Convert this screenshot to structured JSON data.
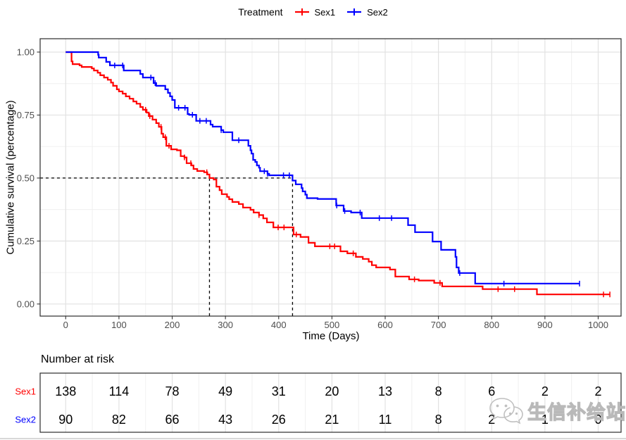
{
  "legend": {
    "title": "Treatment",
    "items": [
      {
        "label": "Sex1",
        "color": "#FF0000"
      },
      {
        "label": "Sex2",
        "color": "#0000FF"
      }
    ]
  },
  "chart_data": {
    "type": "line",
    "variant": "kaplan-meier-step-curve",
    "title": "",
    "xlabel": "Time (Days)",
    "ylabel": "Cumulative survival (percentage)",
    "x_ticks": [
      0,
      100,
      200,
      300,
      400,
      500,
      600,
      700,
      800,
      900,
      1000
    ],
    "y_ticks": [
      0,
      0.25,
      0.5,
      0.75,
      1
    ],
    "y_tick_labels": [
      "0.00",
      "0.25",
      "0.50",
      "0.75",
      "1.00"
    ],
    "xlim": [
      -48,
      1043
    ],
    "ylim": [
      -0.048,
      1.053
    ],
    "grid": {
      "major": true,
      "minor": true
    },
    "legend_position": "top",
    "median_lines": {
      "y": 0.5,
      "sex1_median_days": 270,
      "sex2_median_days": 426
    },
    "series": [
      {
        "name": "Sex1",
        "color": "#FF0000",
        "steps": [
          [
            0,
            1.0
          ],
          [
            11,
            0.963
          ],
          [
            13,
            0.952
          ],
          [
            26,
            0.947
          ],
          [
            30,
            0.941
          ],
          [
            49,
            0.935
          ],
          [
            53,
            0.927
          ],
          [
            60,
            0.918
          ],
          [
            65,
            0.908
          ],
          [
            72,
            0.899
          ],
          [
            79,
            0.89
          ],
          [
            85,
            0.879
          ],
          [
            89,
            0.866
          ],
          [
            96,
            0.852
          ],
          [
            100,
            0.844
          ],
          [
            107,
            0.835
          ],
          [
            113,
            0.824
          ],
          [
            120,
            0.815
          ],
          [
            127,
            0.804
          ],
          [
            133,
            0.795
          ],
          [
            140,
            0.782
          ],
          [
            145,
            0.771
          ],
          [
            152,
            0.76
          ],
          [
            156,
            0.746
          ],
          [
            163,
            0.732
          ],
          [
            170,
            0.718
          ],
          [
            175,
            0.703
          ],
          [
            180,
            0.676
          ],
          [
            183,
            0.662
          ],
          [
            189,
            0.628
          ],
          [
            198,
            0.614
          ],
          [
            209,
            0.61
          ],
          [
            216,
            0.587
          ],
          [
            223,
            0.582
          ],
          [
            227,
            0.559
          ],
          [
            236,
            0.55
          ],
          [
            240,
            0.536
          ],
          [
            247,
            0.528
          ],
          [
            260,
            0.523
          ],
          [
            266,
            0.514
          ],
          [
            270,
            0.5
          ],
          [
            278,
            0.494
          ],
          [
            283,
            0.466
          ],
          [
            289,
            0.452
          ],
          [
            293,
            0.436
          ],
          [
            303,
            0.425
          ],
          [
            307,
            0.416
          ],
          [
            313,
            0.405
          ],
          [
            325,
            0.397
          ],
          [
            333,
            0.383
          ],
          [
            347,
            0.374
          ],
          [
            353,
            0.363
          ],
          [
            363,
            0.353
          ],
          [
            371,
            0.34
          ],
          [
            378,
            0.324
          ],
          [
            390,
            0.304
          ],
          [
            428,
            0.276
          ],
          [
            441,
            0.266
          ],
          [
            456,
            0.243
          ],
          [
            468,
            0.229
          ],
          [
            516,
            0.209
          ],
          [
            529,
            0.201
          ],
          [
            545,
            0.187
          ],
          [
            558,
            0.179
          ],
          [
            569,
            0.168
          ],
          [
            575,
            0.154
          ],
          [
            583,
            0.145
          ],
          [
            609,
            0.137
          ],
          [
            619,
            0.109
          ],
          [
            645,
            0.098
          ],
          [
            663,
            0.093
          ],
          [
            692,
            0.084
          ],
          [
            707,
            0.07
          ],
          [
            783,
            0.059
          ],
          [
            885,
            0.038
          ],
          [
            1022,
            0.038
          ]
        ],
        "censor_days": [
          150,
          158,
          179,
          187,
          194,
          223,
          235,
          265,
          363,
          399,
          410,
          433,
          496,
          505,
          540,
          655,
          703,
          812,
          843,
          1010,
          1022
        ]
      },
      {
        "name": "Sex2",
        "color": "#0000FF",
        "steps": [
          [
            0,
            1.0
          ],
          [
            61,
            0.989
          ],
          [
            62,
            0.978
          ],
          [
            76,
            0.961
          ],
          [
            83,
            0.947
          ],
          [
            109,
            0.927
          ],
          [
            140,
            0.913
          ],
          [
            145,
            0.899
          ],
          [
            165,
            0.877
          ],
          [
            170,
            0.866
          ],
          [
            187,
            0.852
          ],
          [
            192,
            0.838
          ],
          [
            196,
            0.824
          ],
          [
            200,
            0.81
          ],
          [
            205,
            0.779
          ],
          [
            229,
            0.754
          ],
          [
            232,
            0.751
          ],
          [
            245,
            0.727
          ],
          [
            272,
            0.712
          ],
          [
            276,
            0.704
          ],
          [
            292,
            0.69
          ],
          [
            296,
            0.682
          ],
          [
            313,
            0.65
          ],
          [
            343,
            0.628
          ],
          [
            347,
            0.61
          ],
          [
            349,
            0.597
          ],
          [
            352,
            0.572
          ],
          [
            356,
            0.564
          ],
          [
            359,
            0.55
          ],
          [
            363,
            0.541
          ],
          [
            365,
            0.527
          ],
          [
            379,
            0.517
          ],
          [
            382,
            0.511
          ],
          [
            426,
            0.49
          ],
          [
            432,
            0.475
          ],
          [
            443,
            0.46
          ],
          [
            445,
            0.447
          ],
          [
            450,
            0.434
          ],
          [
            453,
            0.42
          ],
          [
            473,
            0.417
          ],
          [
            508,
            0.391
          ],
          [
            522,
            0.369
          ],
          [
            536,
            0.363
          ],
          [
            556,
            0.341
          ],
          [
            643,
            0.313
          ],
          [
            656,
            0.285
          ],
          [
            689,
            0.248
          ],
          [
            705,
            0.215
          ],
          [
            732,
            0.187
          ],
          [
            734,
            0.145
          ],
          [
            738,
            0.123
          ],
          [
            769,
            0.081
          ],
          [
            965,
            0.081
          ]
        ],
        "censor_days": [
          92,
          107,
          160,
          168,
          212,
          224,
          238,
          252,
          264,
          292,
          325,
          373,
          379,
          409,
          420,
          509,
          524,
          553,
          589,
          612,
          740,
          823,
          965
        ]
      }
    ]
  },
  "risk_table": {
    "title": "Number at risk",
    "times": [
      0,
      100,
      200,
      300,
      400,
      500,
      600,
      700,
      800,
      900,
      1000
    ],
    "rows": [
      {
        "label": "Sex1",
        "color": "#FF0000",
        "values": [
          138,
          114,
          78,
          49,
          31,
          20,
          13,
          8,
          6,
          2,
          2
        ]
      },
      {
        "label": "Sex2",
        "color": "#0000FF",
        "values": [
          90,
          82,
          66,
          43,
          26,
          21,
          11,
          8,
          2,
          1,
          0
        ]
      }
    ]
  },
  "watermark": {
    "text": "生信补给站",
    "icon": "wechat-icon"
  }
}
